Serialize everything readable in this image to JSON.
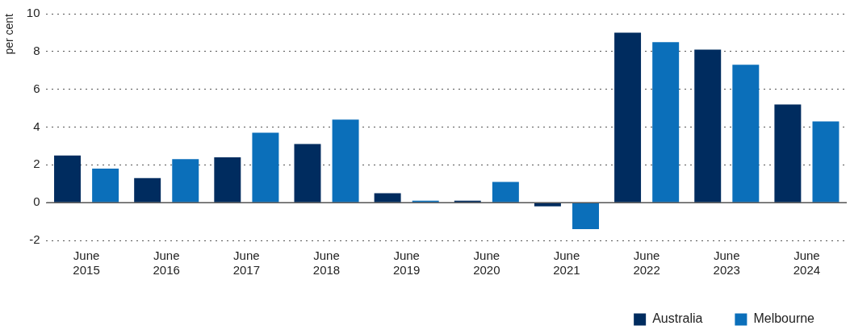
{
  "chart_data": {
    "type": "bar",
    "ylabel": "per cent",
    "categories": [
      "June 2015",
      "June 2016",
      "June 2017",
      "June 2018",
      "June 2019",
      "June 2020",
      "June 2021",
      "June 2022",
      "June 2023",
      "June 2024"
    ],
    "series": [
      {
        "name": "Australia",
        "color": "#002c5f",
        "values": [
          2.5,
          1.3,
          2.4,
          3.1,
          0.5,
          0.1,
          -0.2,
          9.0,
          8.1,
          5.2
        ]
      },
      {
        "name": "Melbourne",
        "color": "#0b6fba",
        "values": [
          1.8,
          2.3,
          3.7,
          4.4,
          0.1,
          1.1,
          -1.4,
          8.5,
          7.3,
          4.3
        ]
      }
    ],
    "ylim": [
      -2,
      10
    ],
    "yticks": [
      -2,
      0,
      2,
      4,
      6,
      8,
      10
    ],
    "grid": "y",
    "legend": "bottom right"
  }
}
